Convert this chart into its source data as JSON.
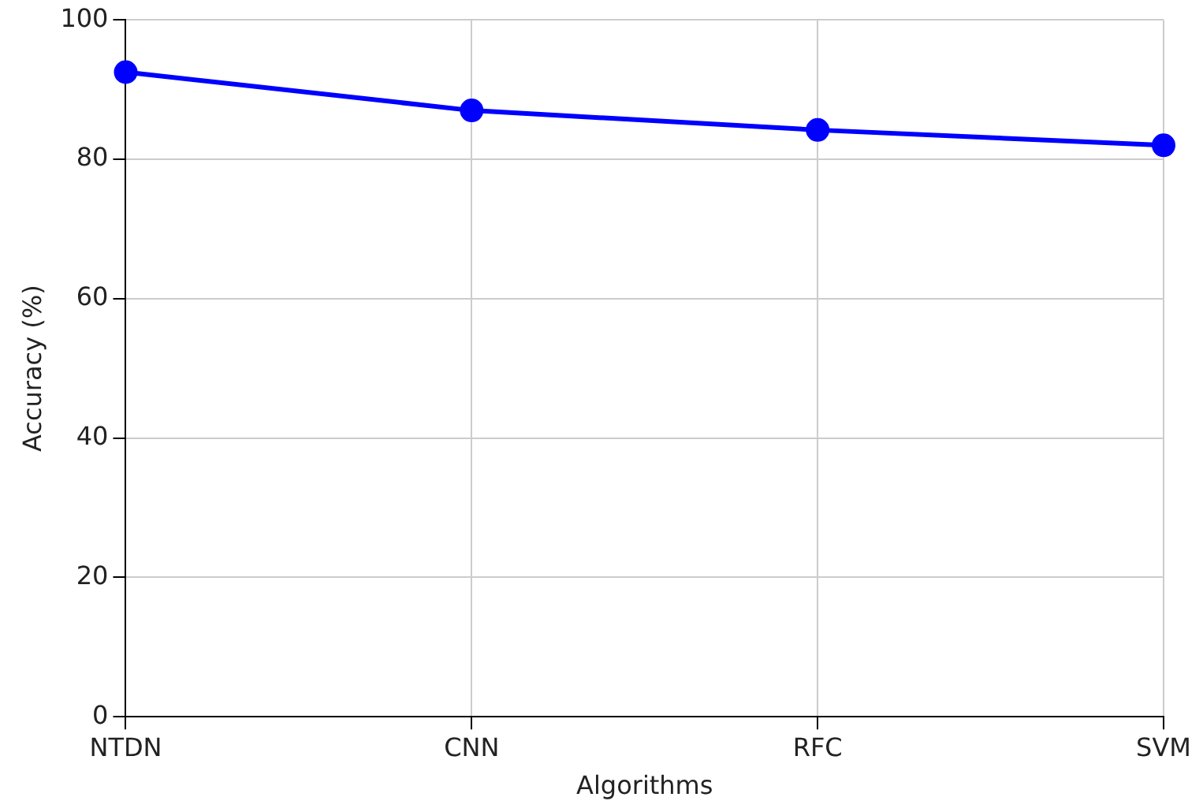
{
  "chart_data": {
    "type": "line",
    "xlabel": "Algorithms",
    "ylabel": "Accuracy (%)",
    "categories": [
      "NTDN",
      "CNN",
      "RFC",
      "SVM"
    ],
    "series": [
      {
        "color": "#0000ff",
        "values": [
          92.5,
          87,
          84.2,
          82
        ]
      }
    ],
    "ylim": [
      0,
      100
    ],
    "yticks": [
      0,
      20,
      40,
      60,
      80,
      100
    ],
    "grid": true,
    "marker": "circle",
    "line_style": "solid",
    "legend": false
  }
}
